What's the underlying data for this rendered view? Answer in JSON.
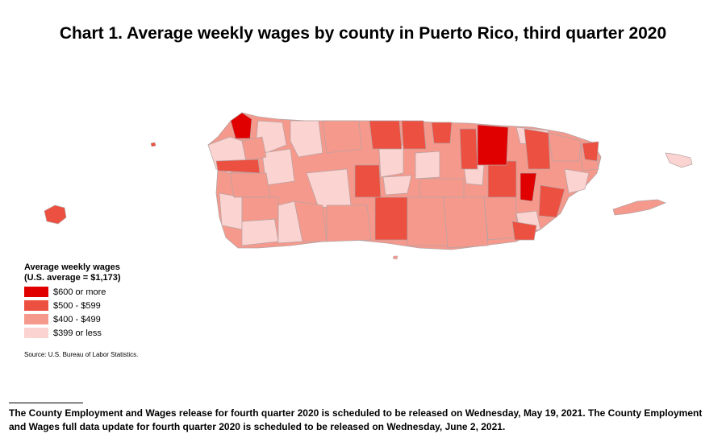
{
  "title": "Chart 1. Average weekly wages by county in Puerto Rico, third quarter 2020",
  "legend": {
    "title": "Average weekly wages",
    "subtitle": "(U.S. average = $1,173)",
    "items": [
      {
        "label": "$600 or more",
        "color": "#e00000"
      },
      {
        "label": "$500 - $599",
        "color": "#ec5040"
      },
      {
        "label": "$400 - $499",
        "color": "#f5998c"
      },
      {
        "label": "$399 or less",
        "color": "#fbd3d1"
      }
    ]
  },
  "source": "Source: U.S. Bureau of Labor Statistics.",
  "footnote": "The County Employment and Wages release for fourth quarter 2020 is scheduled to be released on Wednesday, May 19, 2021. The County Employment and Wages full data update for fourth quarter 2020 is scheduled to be released on Wednesday, June 2, 2021."
}
